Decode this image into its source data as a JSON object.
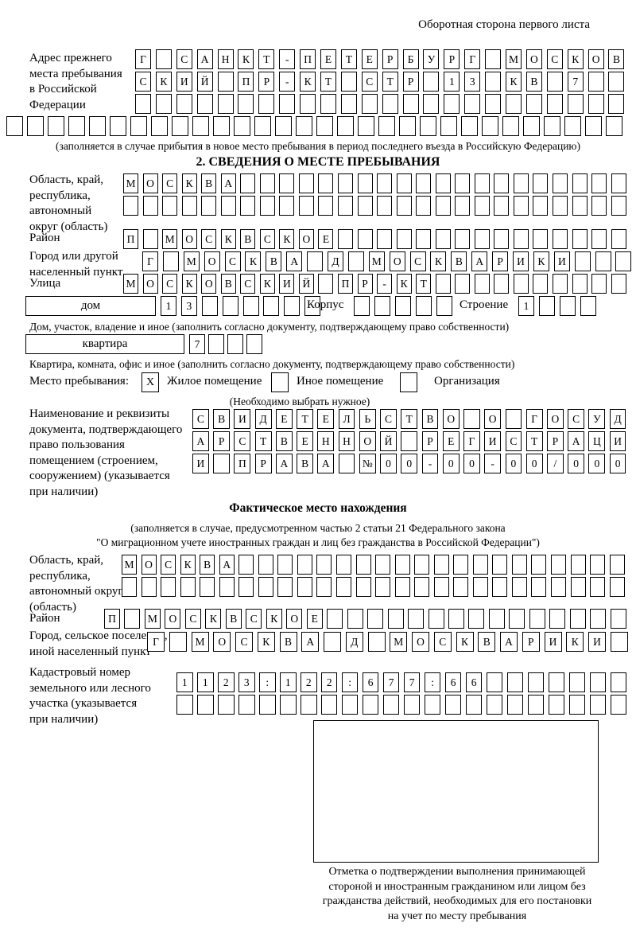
{
  "page": {
    "back_note": "Оборотная сторона первого листа"
  },
  "prev_address": {
    "label": "Адрес прежнего\nместа пребывания\nв Российской\nФедерации",
    "row1": [
      "Г",
      "",
      "С",
      "А",
      "Н",
      "К",
      "Т",
      "-",
      "П",
      "Е",
      "Т",
      "Е",
      "Р",
      "Б",
      "У",
      "Р",
      "Г",
      "",
      "М",
      "О",
      "С",
      "К",
      "О",
      "В"
    ],
    "row2": [
      "С",
      "К",
      "И",
      "Й",
      "",
      "П",
      "Р",
      "-",
      "К",
      "Т",
      "",
      "С",
      "Т",
      "Р",
      "",
      "1",
      "3",
      "",
      "К",
      "В",
      "",
      "7",
      "",
      ""
    ],
    "row3": [
      "",
      "",
      "",
      "",
      "",
      "",
      "",
      "",
      "",
      "",
      "",
      "",
      "",
      "",
      "",
      "",
      "",
      "",
      "",
      "",
      "",
      "",
      "",
      ""
    ],
    "row4": [
      "",
      "",
      "",
      "",
      "",
      "",
      "",
      "",
      "",
      "",
      "",
      "",
      "",
      "",
      "",
      "",
      "",
      "",
      "",
      "",
      "",
      "",
      "",
      "",
      "",
      "",
      "",
      "",
      "",
      ""
    ],
    "caption": "(заполняется в случае прибытия в новое место пребывания в период последнего въезда в Российскую Федерацию)"
  },
  "section2": {
    "title": "2. СВЕДЕНИЯ О МЕСТЕ ПРЕБЫВАНИЯ",
    "region": {
      "label": "Область, край,\nреспублика,\nавтономный\nокруг (область)",
      "row1": [
        "М",
        "О",
        "С",
        "К",
        "В",
        "А",
        "",
        "",
        "",
        "",
        "",
        "",
        "",
        "",
        "",
        "",
        "",
        "",
        "",
        "",
        "",
        "",
        "",
        "",
        "",
        ""
      ],
      "row2": [
        "",
        "",
        "",
        "",
        "",
        "",
        "",
        "",
        "",
        "",
        "",
        "",
        "",
        "",
        "",
        "",
        "",
        "",
        "",
        "",
        "",
        "",
        "",
        "",
        "",
        ""
      ]
    },
    "district": {
      "label": "Район",
      "row": [
        "П",
        "",
        "М",
        "О",
        "С",
        "К",
        "В",
        "С",
        "К",
        "О",
        "Е",
        "",
        "",
        "",
        "",
        "",
        "",
        "",
        "",
        "",
        "",
        "",
        "",
        "",
        "",
        ""
      ]
    },
    "city": {
      "label": "Город или другой\nнаселенный пункт",
      "row": [
        "Г",
        "",
        "М",
        "О",
        "С",
        "К",
        "В",
        "А",
        "",
        "Д",
        "",
        "М",
        "О",
        "С",
        "К",
        "В",
        "А",
        "Р",
        "И",
        "К",
        "И",
        "",
        "",
        ""
      ]
    },
    "street": {
      "label": "Улица",
      "row": [
        "М",
        "О",
        "С",
        "К",
        "О",
        "В",
        "С",
        "К",
        "И",
        "Й",
        "",
        "П",
        "Р",
        "-",
        "К",
        "Т",
        "",
        "",
        "",
        "",
        "",
        "",
        "",
        "",
        "",
        ""
      ]
    },
    "house": {
      "box_label": "дом",
      "cells": [
        "1",
        "3",
        "",
        "",
        "",
        "",
        "",
        ""
      ],
      "korpus_label": "Корпус",
      "korpus_cells": [
        "",
        "",
        "",
        "",
        ""
      ],
      "stroenie_label": "Строение",
      "stroenie_cells": [
        "1",
        "",
        "",
        ""
      ],
      "caption": "Дом, участок, владение и иное (заполнить согласно документу, подтверждающему право собственности)"
    },
    "apartment": {
      "box_label": "квартира",
      "cells": [
        "7",
        "",
        "",
        ""
      ],
      "caption": "Квартира, комната, офис и иное (заполнить согласно документу, подтверждающему право собственности)"
    },
    "stay_type": {
      "label": "Место пребывания:",
      "checkbox1": "X",
      "option1": "Жилое помещение",
      "checkbox2": "",
      "option2": "Иное помещение",
      "checkbox3": "",
      "option3": "Организация",
      "caption": "(Необходимо выбрать нужное)"
    },
    "document": {
      "label": "Наименование и реквизиты\nдокумента, подтверждающего\nправо пользования\nпомещением (строением,\nсооружением) (указывается\nпри наличии)",
      "row1": [
        "С",
        "В",
        "И",
        "Д",
        "Е",
        "Т",
        "Е",
        "Л",
        "Ь",
        "С",
        "Т",
        "В",
        "О",
        "",
        "О",
        "",
        "Г",
        "О",
        "С",
        "У",
        "Д"
      ],
      "row2": [
        "А",
        "Р",
        "С",
        "Т",
        "В",
        "Е",
        "Н",
        "Н",
        "О",
        "Й",
        "",
        "Р",
        "Е",
        "Г",
        "И",
        "С",
        "Т",
        "Р",
        "А",
        "Ц",
        "И"
      ],
      "row3": [
        "И",
        "",
        "П",
        "Р",
        "А",
        "В",
        "А",
        "",
        "№",
        "0",
        "0",
        "-",
        "0",
        "0",
        "-",
        "0",
        "0",
        "/",
        "0",
        "0",
        "0"
      ]
    }
  },
  "actual_location": {
    "title": "Фактическое место нахождения",
    "caption_line1": "(заполняется в случае, предусмотренном частью 2 статьи 21 Федерального закона",
    "caption_line2": "\"О миграционном учете иностранных граждан и лиц без гражданства в Российской Федерации\")",
    "region": {
      "label": "Область, край,\nреспублика,\nавтономный округ\n(область)",
      "row1": [
        "М",
        "О",
        "С",
        "К",
        "В",
        "А",
        "",
        "",
        "",
        "",
        "",
        "",
        "",
        "",
        "",
        "",
        "",
        "",
        "",
        "",
        "",
        "",
        "",
        "",
        "",
        ""
      ],
      "row2": [
        "",
        "",
        "",
        "",
        "",
        "",
        "",
        "",
        "",
        "",
        "",
        "",
        "",
        "",
        "",
        "",
        "",
        "",
        "",
        "",
        "",
        "",
        "",
        "",
        "",
        ""
      ]
    },
    "district": {
      "label": "Район",
      "row": [
        "П",
        "",
        "М",
        "О",
        "С",
        "К",
        "В",
        "С",
        "К",
        "О",
        "Е",
        "",
        "",
        "",
        "",
        "",
        "",
        "",
        "",
        "",
        "",
        "",
        "",
        "",
        "",
        ""
      ]
    },
    "city": {
      "label": "Город, сельское поселение,\nиной населенный пункт",
      "row": [
        "Г",
        "",
        "М",
        "О",
        "С",
        "К",
        "В",
        "А",
        "",
        "Д",
        "",
        "М",
        "О",
        "С",
        "К",
        "В",
        "А",
        "Р",
        "И",
        "К",
        "И",
        ""
      ]
    },
    "cadastral": {
      "label": "Кадастровый номер\nземельного или лесного\nучастка (указывается\nпри наличии)",
      "row1": [
        "1",
        "1",
        "2",
        "3",
        ":",
        "1",
        "2",
        "2",
        ":",
        "6",
        "7",
        "7",
        ":",
        "6",
        "6",
        "",
        "",
        "",
        "",
        "",
        "",
        ""
      ],
      "row2": [
        "",
        "",
        "",
        "",
        "",
        "",
        "",
        "",
        "",
        "",
        "",
        "",
        "",
        "",
        "",
        "",
        "",
        "",
        "",
        "",
        "",
        ""
      ]
    },
    "stamp_caption": "Отметка о подтверждении выполнения принимающей\nстороной и иностранным гражданином или лицом без\nгражданства действий, необходимых для его постановки\nна учет по месту пребывания"
  }
}
